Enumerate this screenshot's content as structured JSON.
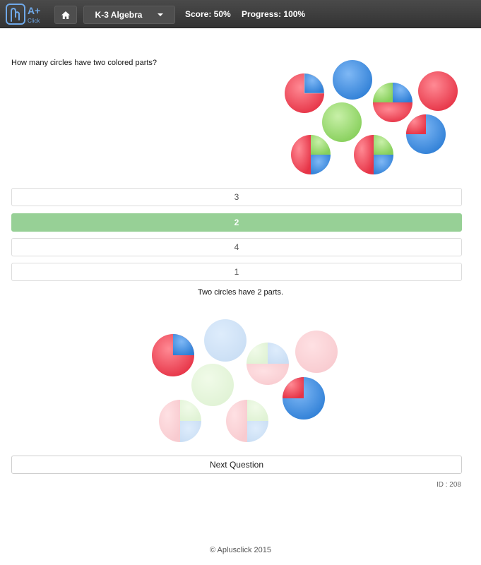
{
  "header": {
    "logo_text": "A+",
    "logo_subtext": "Click",
    "course_label": "K-3 Algebra",
    "score_text": "Score: 50%",
    "progress_text": "Progress: 100%"
  },
  "question": {
    "text": "How many circles have two colored parts?"
  },
  "answers": [
    {
      "label": "3",
      "state": "default"
    },
    {
      "label": "2",
      "state": "correct"
    },
    {
      "label": "4",
      "state": "default"
    },
    {
      "label": "1",
      "state": "default"
    }
  ],
  "explanation": "Two circles have 2 parts.",
  "next_button": "Next Question",
  "question_id": "ID : 208",
  "footer": "© Aplusclick 2015",
  "colors": {
    "red": "#f04a5a",
    "blue": "#4a90e2",
    "green": "#a6df7c",
    "correct_bg": "#97d096"
  }
}
